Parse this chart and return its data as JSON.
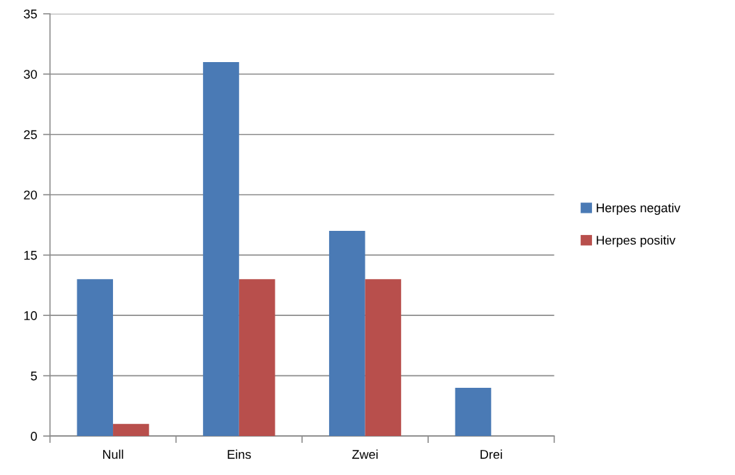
{
  "chart_data": {
    "type": "bar",
    "categories": [
      "Null",
      "Eins",
      "Zwei",
      "Drei"
    ],
    "series": [
      {
        "name": "Herpes negativ",
        "color": "#4a7ab5",
        "values": [
          13,
          31,
          17,
          4
        ]
      },
      {
        "name": "Herpes positiv",
        "color": "#b84f4c",
        "values": [
          1,
          13,
          13,
          0
        ]
      }
    ],
    "ylim": [
      0,
      35
    ],
    "yticks": [
      0,
      5,
      10,
      15,
      20,
      25,
      30,
      35
    ],
    "grid": "y",
    "legend": "right"
  }
}
